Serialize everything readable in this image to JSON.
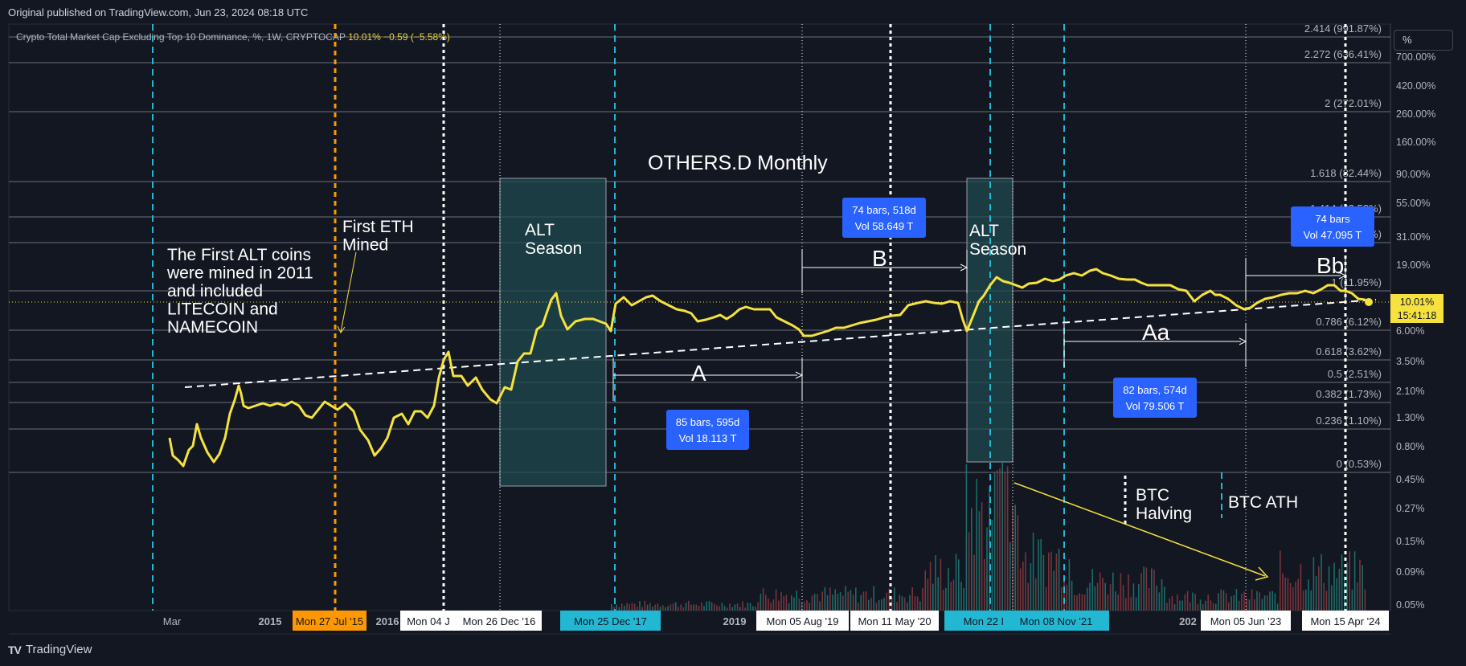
{
  "header": {
    "published": "Original published on TradingView.com, Jun 23, 2024 08:18 UTC"
  },
  "footer": {
    "brand": "TradingView",
    "logo": "TV"
  },
  "legend": {
    "symbol": "Crypto Total Market Cap Excluding Top 10 Dominance, %, 1W, CRYPTOCAP",
    "last": "10.01%",
    "change": "−0.59 (−5.58%)"
  },
  "scale_button": "%",
  "colors": {
    "background": "#131722",
    "line": "#f5e23f",
    "accent_blue": "#2962ff",
    "cyan": "#22b8d4",
    "orange": "#ff9800"
  },
  "chart_data": {
    "type": "line",
    "title": "OTHERS.D Monthly",
    "ylog": true,
    "right_axis_ticks": [
      "700.00%",
      "420.00%",
      "260.00%",
      "160.00%",
      "90.00%",
      "55.00%",
      "31.00%",
      "19.00%",
      "6.00%",
      "3.50%",
      "2.10%",
      "1.30%",
      "0.80%",
      "0.45%",
      "0.27%",
      "0.15%",
      "0.09%",
      "0.05%"
    ],
    "price_tag": {
      "value": "10.01%",
      "countdown": "15:41:18"
    },
    "x_ticks": [
      "Mar",
      "2015",
      "2016",
      "2019"
    ],
    "date_tags": [
      {
        "label": "Mon 27 Jul '15",
        "style": "orange"
      },
      {
        "label": "Mon 04 J",
        "style": "white"
      },
      {
        "label": "Mon 26 Dec '16",
        "style": "white"
      },
      {
        "label": "Mon 25 Dec '17",
        "style": "cyan"
      },
      {
        "label": "Mon 05 Aug '19",
        "style": "white"
      },
      {
        "label": "Mon 11 May '20",
        "style": "white"
      },
      {
        "label": "Mon 22 Mar '2",
        "style": "cyan"
      },
      {
        "label": "Mon 08 Nov '21",
        "style": "cyan"
      },
      {
        "label": "202",
        "style": "plain"
      },
      {
        "label": "Mon 05 Jun '23",
        "style": "white"
      },
      {
        "label": "Mon 15 Apr '24",
        "style": "white"
      }
    ],
    "fib_levels": [
      {
        "label": "2.414 (991.87%)"
      },
      {
        "label": "2.272 (636.41%)"
      },
      {
        "label": "2 (272.01%)"
      },
      {
        "label": "1.618 (82.44%)"
      },
      {
        "label": "1.414 (43.58%)"
      },
      {
        "label": "1.272 (27.95%)"
      },
      {
        "label": "1 (11.95%)"
      },
      {
        "label": "0.786 (6.12%)"
      },
      {
        "label": "0.618 (3.62%)"
      },
      {
        "label": "0.5 (2.51%)"
      },
      {
        "label": "0.382 (1.73%)"
      },
      {
        "label": "0.236 (1.10%)"
      },
      {
        "label": "0 (0.53%)"
      }
    ],
    "measure_boxes": [
      {
        "line1": "85 bars, 595d",
        "line2": "Vol 18.113 T"
      },
      {
        "line1": "74 bars, 518d",
        "line2": "Vol 58.649 T"
      },
      {
        "line1": "82 bars, 574d",
        "line2": "Vol 79.506 T"
      },
      {
        "line1": "74 bars",
        "line2": "Vol 47.095 T"
      }
    ],
    "annotations": {
      "first_alts": [
        "The First ALT coins",
        "were mined in 2011",
        "and included",
        "LITECOIN and",
        "NAMECOIN"
      ],
      "first_eth": [
        "First ETH",
        "Mined"
      ],
      "alt_season_1": [
        "ALT",
        "Season"
      ],
      "alt_season_2": [
        "ALT",
        "Season"
      ],
      "btc_halving": [
        "BTC",
        "Halving"
      ],
      "btc_ath": "BTC ATH",
      "range_a": "A",
      "range_b": "B",
      "range_aa": "Aa",
      "range_bb": "Bb"
    }
  }
}
